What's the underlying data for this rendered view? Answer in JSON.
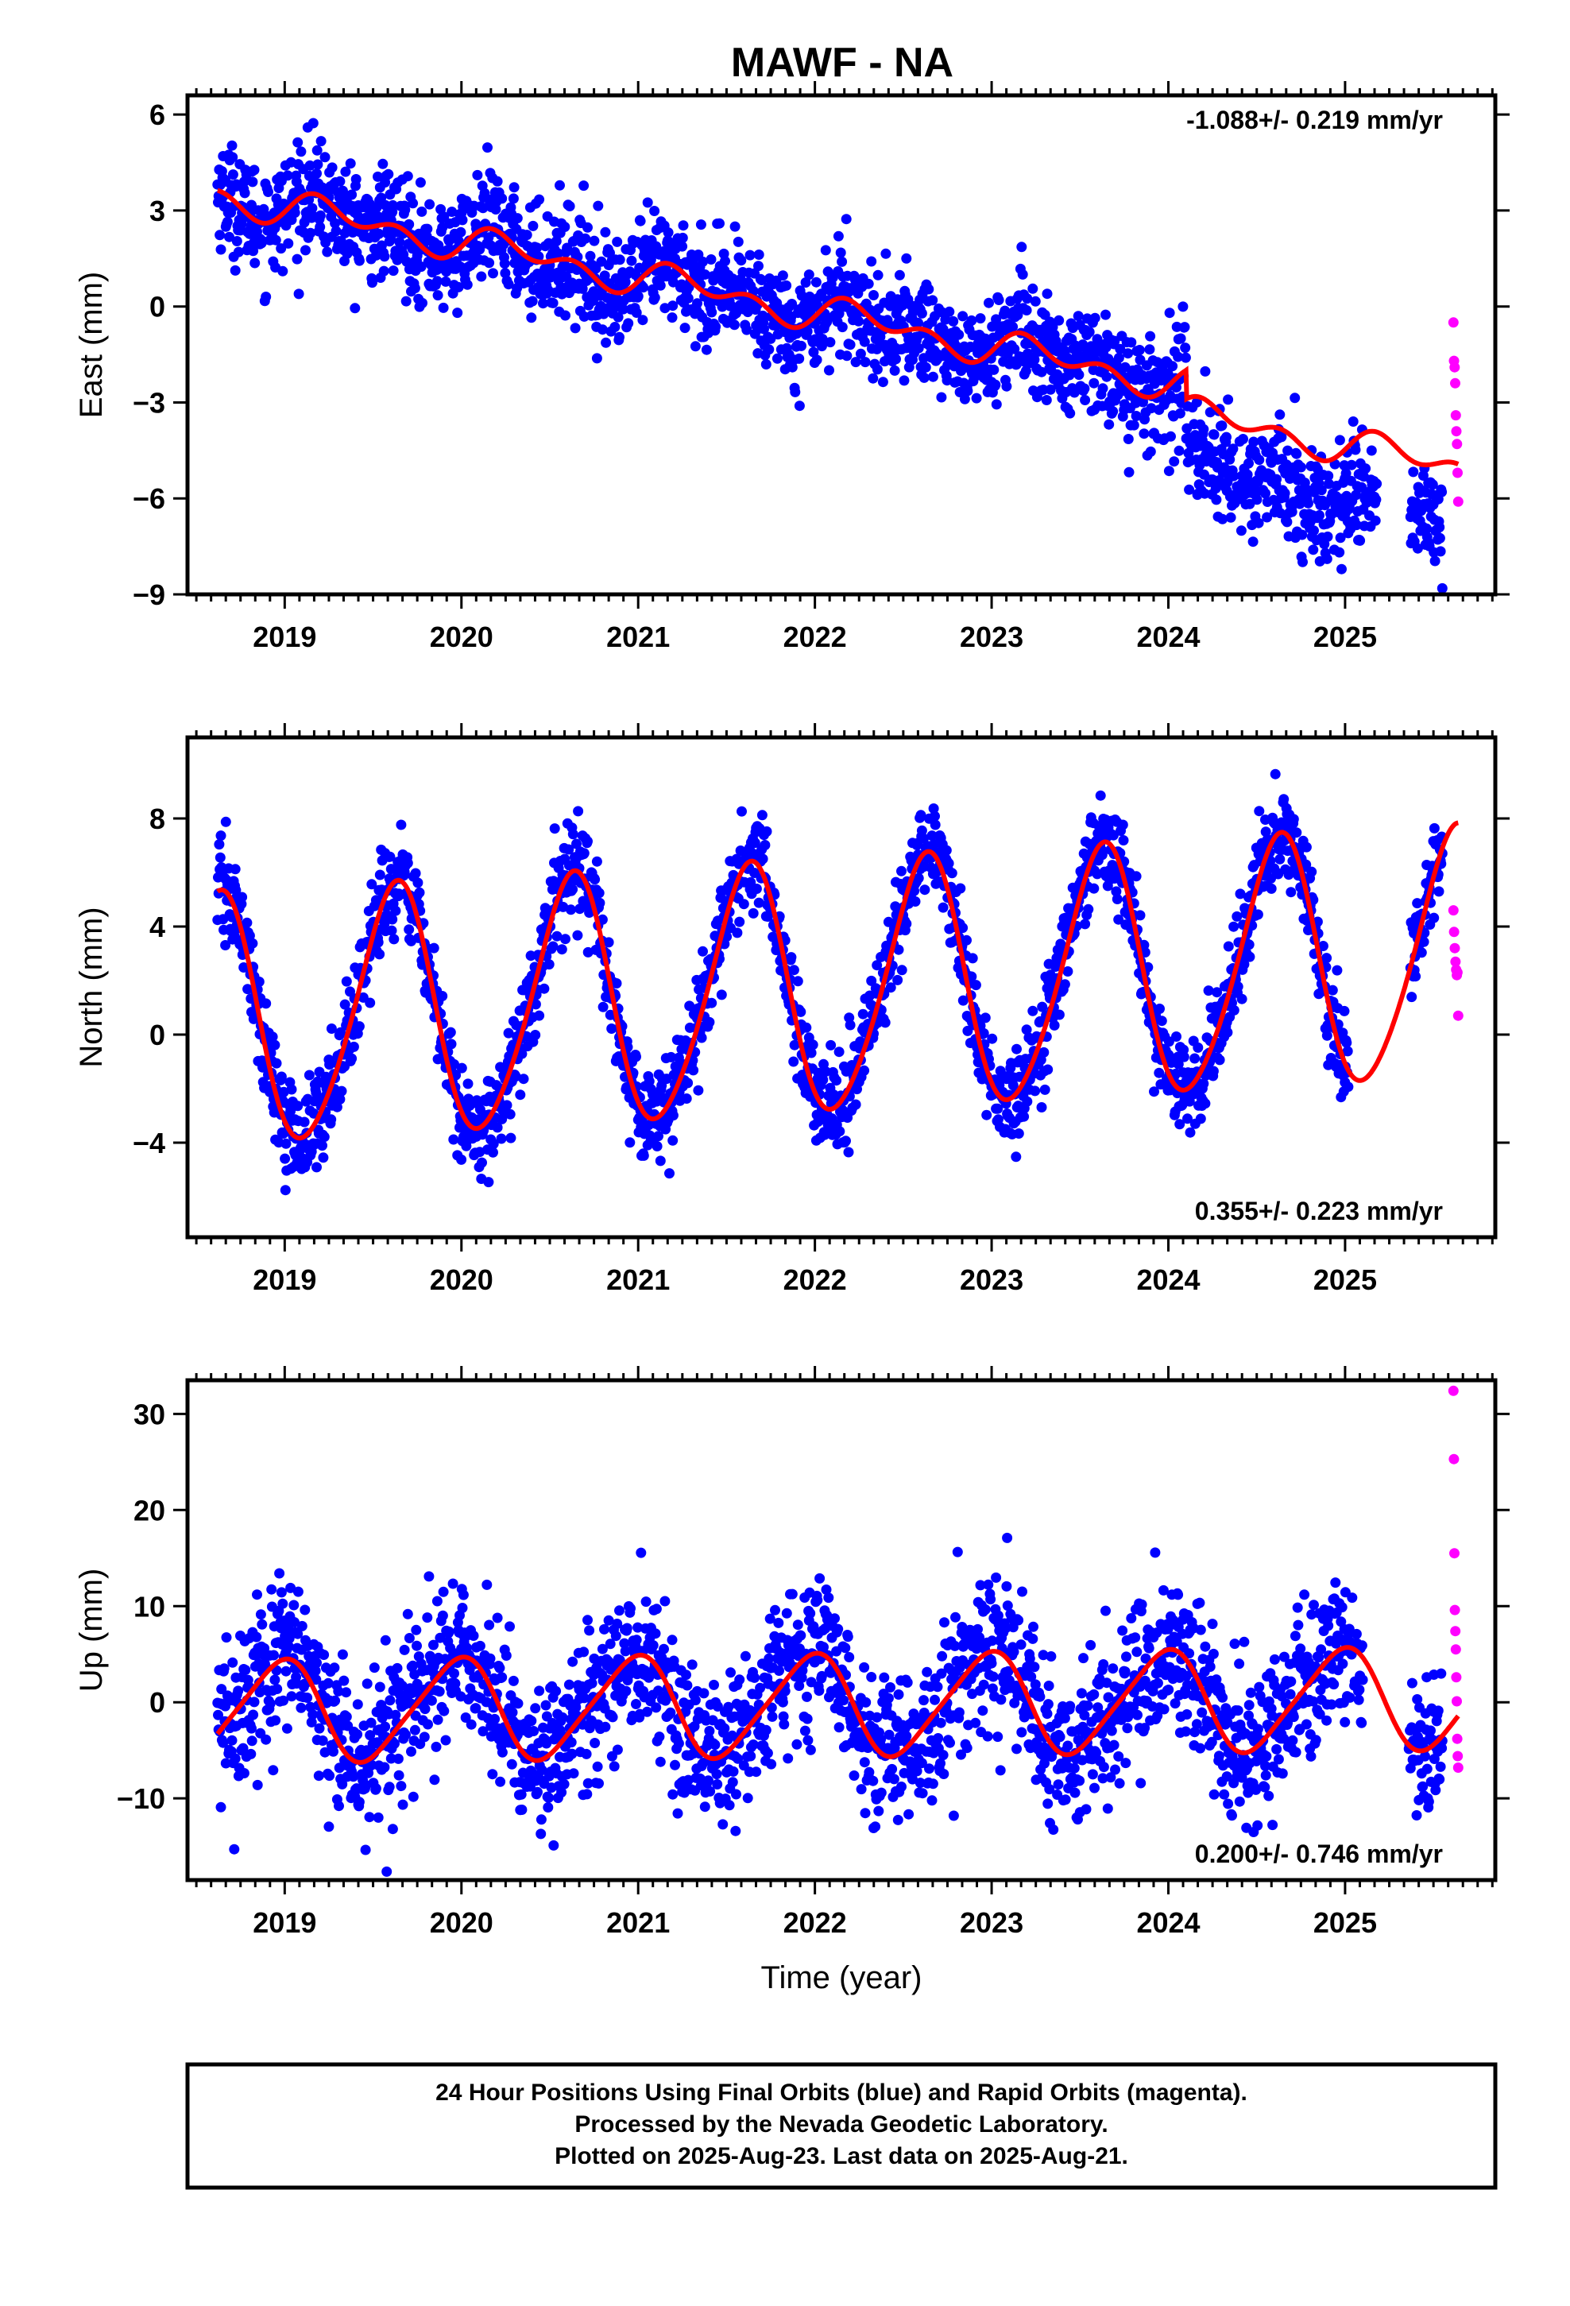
{
  "title": "MAWF - NA",
  "footer": {
    "line1": "24 Hour Positions Using Final Orbits (blue) and Rapid Orbits (magenta).",
    "line2": "Processed by the Nevada Geodetic Laboratory.",
    "line3": "Plotted on 2025-Aug-23. Last data on 2025-Aug-21."
  },
  "colors": {
    "final": "#0000ff",
    "rapid": "#ff00ff",
    "model": "#ff0000",
    "axis": "#000000"
  },
  "chart_data": [
    {
      "type": "scatter",
      "key": "east",
      "ylabel": "East (mm)",
      "xlabel": "",
      "rate": "-1.088+/- 0.219 mm/yr",
      "rate_position": "top-right",
      "xlim": [
        2018.45,
        2025.85
      ],
      "ylim": [
        -9,
        6.6
      ],
      "xticks": [
        2019,
        2020,
        2021,
        2022,
        2023,
        2024,
        2025
      ],
      "xtick_labels": [
        "2019",
        "2020",
        "2021",
        "2022",
        "2023",
        "2024",
        "2025"
      ],
      "yticks": [
        -9,
        -6,
        -3,
        0,
        3,
        6
      ],
      "ytick_labels": [
        "−9",
        "−6",
        "−3",
        "0",
        "3",
        "6"
      ],
      "data_start": 2018.62,
      "final_end": 2025.55,
      "rapid_start": 2025.55,
      "data_end": 2025.64,
      "gaps": [
        [
          2025.18,
          2025.37
        ]
      ],
      "scatter_sd": 0.85,
      "model": {
        "start_value": 3.5,
        "rate": -1.088,
        "annual_amp": 0.35,
        "annual_phase": 0.6,
        "semiannual_amp": 0.35,
        "semiannual_phase": 0.2,
        "offsets": [
          {
            "t": 2024.1,
            "dy": -2.5,
            "fit_dy": -0.9
          }
        ]
      },
      "rapid_values": [
        -0.5,
        -1.7,
        -1.9,
        -2.4,
        -3.4,
        -3.9,
        -4.3,
        -5.2,
        -6.1
      ]
    },
    {
      "type": "scatter",
      "key": "north",
      "ylabel": "North (mm)",
      "xlabel": "",
      "rate": "0.355+/- 0.223 mm/yr",
      "rate_position": "bottom-right",
      "xlim": [
        2018.45,
        2025.85
      ],
      "ylim": [
        -7.5,
        11
      ],
      "xticks": [
        2019,
        2020,
        2021,
        2022,
        2023,
        2024,
        2025
      ],
      "xtick_labels": [
        "2019",
        "2020",
        "2021",
        "2022",
        "2023",
        "2024",
        "2025"
      ],
      "yticks": [
        -4,
        0,
        4,
        8
      ],
      "ytick_labels": [
        "−4",
        "0",
        "4",
        "8"
      ],
      "data_start": 2018.62,
      "final_end": 2025.55,
      "rapid_start": 2025.55,
      "data_end": 2025.64,
      "gaps": [
        [
          2025.02,
          2025.37
        ]
      ],
      "scatter_sd": 0.9,
      "model": {
        "start_value": 0.4,
        "rate": 0.355,
        "annual_amp": 4.6,
        "annual_phase": 0.25,
        "semiannual_amp": 0.5,
        "semiannual_phase": 0.1,
        "offsets": []
      },
      "rapid_values": [
        4.6,
        3.8,
        3.2,
        2.7,
        2.4,
        2.2,
        2.3,
        0.7
      ]
    },
    {
      "type": "scatter",
      "key": "up",
      "ylabel": "Up (mm)",
      "xlabel": "Time (year)",
      "rate": "0.200+/- 0.746 mm/yr",
      "rate_position": "bottom-right",
      "xlim": [
        2018.45,
        2025.85
      ],
      "ylim": [
        -18.5,
        33.5
      ],
      "xticks": [
        2019,
        2020,
        2021,
        2022,
        2023,
        2024,
        2025
      ],
      "xtick_labels": [
        "2019",
        "2020",
        "2021",
        "2022",
        "2023",
        "2024",
        "2025"
      ],
      "yticks": [
        -10,
        0,
        10,
        20,
        30
      ],
      "ytick_labels": [
        "−10",
        "0",
        "10",
        "20",
        "30"
      ],
      "data_start": 2018.62,
      "final_end": 2025.55,
      "rapid_start": 2025.55,
      "data_end": 2025.64,
      "gaps": [
        [
          2025.1,
          2025.36
        ]
      ],
      "scatter_sd": 4.0,
      "model": {
        "start_value": -1.0,
        "rate": 0.2,
        "annual_amp": 5.2,
        "annual_phase": 0.9,
        "semiannual_amp": 0.8,
        "semiannual_phase": 0.3,
        "offsets": []
      },
      "rapid_values": [
        32.4,
        25.3,
        15.5,
        9.6,
        7.4,
        5.5,
        2.6,
        0.1,
        -3.8,
        -5.6,
        -6.8
      ]
    }
  ]
}
